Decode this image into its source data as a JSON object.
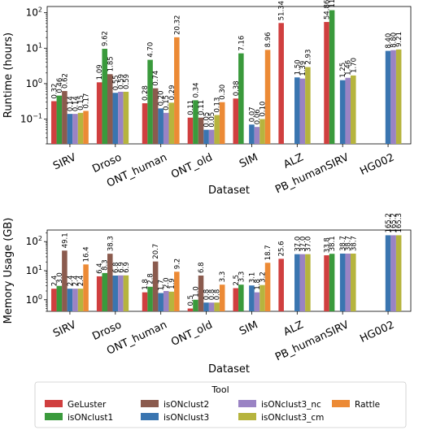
{
  "legend": {
    "title": "Tool",
    "placement": "bottom-center"
  },
  "chart_data": [
    {
      "type": "bar",
      "xlabel": "Dataset",
      "ylabel": "Runtime (hours)",
      "yscale": "log",
      "ylim": [
        0.02,
        150
      ],
      "yticks": [
        {
          "v": 0.1,
          "base": "10",
          "exp": "−1"
        },
        {
          "v": 1,
          "base": "10",
          "exp": "0"
        },
        {
          "v": 10,
          "base": "10",
          "exp": "1"
        },
        {
          "v": 100,
          "base": "10",
          "exp": "2"
        }
      ],
      "categories": [
        "SIRV",
        "Droso",
        "ONT_human",
        "ONT_old",
        "SIM",
        "ALZ",
        "PB_humanSIRV",
        "HG002"
      ],
      "series": [
        {
          "name": "GeLuster",
          "color": "#d03f3f",
          "values": [
            0.32,
            1.09,
            0.28,
            0.11,
            0.38,
            51.34,
            54.86,
            null
          ],
          "labels": [
            "0.32",
            "1.09",
            "0.28",
            "0.11",
            "0.38",
            "51.34",
            "54.86",
            ""
          ]
        },
        {
          "name": "isONclust1",
          "color": "#3a9a3c",
          "values": [
            0.46,
            9.62,
            4.7,
            0.34,
            7.16,
            null,
            117.98,
            null
          ],
          "labels": [
            "0.46",
            "9.62",
            "4.70",
            "0.34",
            "7.16",
            "",
            "117.98",
            ""
          ]
        },
        {
          "name": "isONclust2",
          "color": "#8b5b4e",
          "values": [
            0.62,
            1.85,
            0.74,
            0.11,
            null,
            null,
            null,
            null
          ],
          "labels": [
            "0.62",
            "1.85",
            "0.74",
            "0.11",
            "",
            "",
            "",
            ""
          ]
        },
        {
          "name": "isONclust3",
          "color": "#3a75b0",
          "values": [
            0.14,
            0.55,
            0.2,
            0.05,
            0.07,
            1.5,
            1.25,
            8.4
          ],
          "labels": [
            "0.14",
            "0.55",
            "0.20",
            "0.05",
            "0.07",
            "1.50",
            "1.25",
            "8.40"
          ]
        },
        {
          "name": "isONclust3_nc",
          "color": "#9a83c4",
          "values": [
            0.14,
            0.59,
            0.15,
            0.05,
            0.06,
            1.39,
            1.46,
            8.8
          ],
          "labels": [
            "0.14",
            "0.59",
            "0.15",
            "0.05",
            "0.06",
            "1.39",
            "1.46",
            "8.80"
          ]
        },
        {
          "name": "isONclust3_cm",
          "color": "#b6b43e",
          "values": [
            0.15,
            0.59,
            0.29,
            0.13,
            0.1,
            2.93,
            1.7,
            9.21
          ],
          "labels": [
            "0.15",
            "0.59",
            "0.29",
            "0.13",
            "0.10",
            "2.93",
            "1.70",
            "9.21"
          ]
        },
        {
          "name": "Rattle",
          "color": "#ec8a35",
          "values": [
            0.17,
            null,
            20.32,
            0.3,
            8.96,
            null,
            null,
            null
          ],
          "labels": [
            "0.17",
            "",
            "20.32",
            "0.30",
            "8.96",
            "",
            "",
            ""
          ]
        }
      ]
    },
    {
      "type": "bar",
      "xlabel": "Dataset",
      "ylabel": "Memory Usage (GB)",
      "yscale": "log",
      "ylim": [
        0.4,
        250
      ],
      "yticks": [
        {
          "v": 1,
          "base": "10",
          "exp": "0"
        },
        {
          "v": 10,
          "base": "10",
          "exp": "1"
        },
        {
          "v": 100,
          "base": "10",
          "exp": "2"
        }
      ],
      "categories": [
        "SIRV",
        "Droso",
        "ONT_human",
        "ONT_old",
        "SIM",
        "ALZ",
        "PB_humanSIRV",
        "HG002"
      ],
      "series": [
        {
          "name": "GeLuster",
          "color": "#d03f3f",
          "values": [
            2.4,
            6.4,
            1.8,
            0.5,
            2.5,
            25.6,
            33.8,
            null
          ],
          "labels": [
            "2.4",
            "6.4",
            "1.8",
            "0.5",
            "2.5",
            "25.6",
            "33.8",
            ""
          ]
        },
        {
          "name": "isONclust1",
          "color": "#3a9a3c",
          "values": [
            3.0,
            8.3,
            2.8,
            1.0,
            3.3,
            null,
            38.1,
            null
          ],
          "labels": [
            "3.0",
            "8.3",
            "2.8",
            "1.0",
            "3.3",
            "",
            "38.1",
            ""
          ]
        },
        {
          "name": "isONclust2",
          "color": "#8b5b4e",
          "values": [
            49.1,
            38.3,
            20.7,
            6.8,
            null,
            null,
            null,
            null
          ],
          "labels": [
            "49.1",
            "38.3",
            "20.7",
            "6.8",
            "",
            "",
            "",
            ""
          ]
        },
        {
          "name": "isONclust3",
          "color": "#3a75b0",
          "values": [
            2.4,
            6.8,
            1.7,
            0.8,
            3.1,
            37.0,
            38.7,
            165.2
          ],
          "labels": [
            "2.4",
            "6.8",
            "1.7",
            "0.8",
            "3.1",
            "37.0",
            "38.7",
            "165.2"
          ]
        },
        {
          "name": "isONclust3_nc",
          "color": "#9a83c4",
          "values": [
            2.4,
            6.9,
            2.0,
            0.8,
            1.8,
            37.0,
            38.7,
            165.2
          ],
          "labels": [
            "2.4",
            "6.9",
            "2.0",
            "0.8",
            "1.8",
            "37.0",
            "38.7",
            "165.2"
          ]
        },
        {
          "name": "isONclust3_cm",
          "color": "#b6b43e",
          "values": [
            2.4,
            6.9,
            1.9,
            0.8,
            3.2,
            37.0,
            38.7,
            165.3
          ],
          "labels": [
            "2.4",
            "6.9",
            "1.9",
            "0.8",
            "3.2",
            "37.0",
            "38.7",
            "165.3"
          ]
        },
        {
          "name": "Rattle",
          "color": "#ec8a35",
          "values": [
            16.4,
            null,
            9.2,
            3.3,
            18.7,
            null,
            null,
            null
          ],
          "labels": [
            "16.4",
            "",
            "9.2",
            "3.3",
            "18.7",
            "",
            "",
            ""
          ]
        }
      ]
    }
  ]
}
